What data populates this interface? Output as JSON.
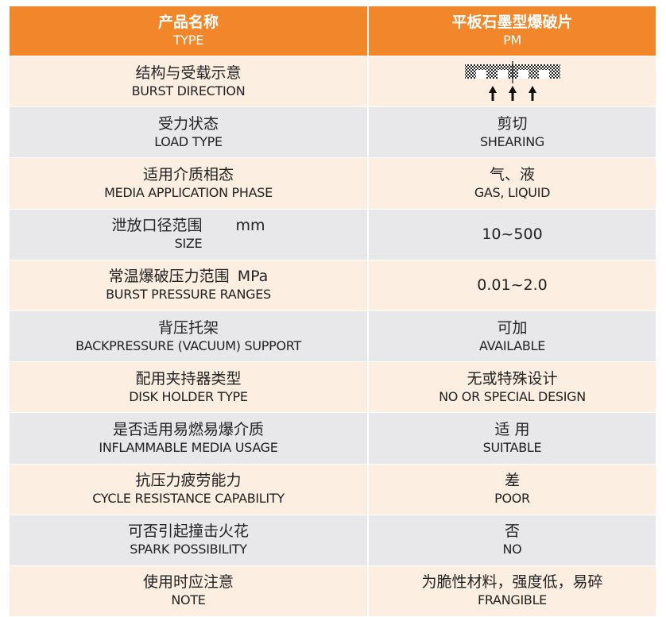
{
  "header": {
    "col1_zh": "产品名称",
    "col1_en": "TYPE",
    "col2_zh": "平板石墨型爆破片",
    "col2_en": "PM"
  },
  "colors": {
    "header": "#F2862A",
    "row_odd": "#FDEEE2",
    "row_even": "#E8E8EA"
  },
  "rows": [
    {
      "zh": "结构与受载示意",
      "en": "BURST DIRECTION",
      "val_icon": "burst-direction-diagram"
    },
    {
      "zh": "受力状态",
      "en": "LOAD TYPE",
      "val_zh": "剪切",
      "val_en": "SHEARING"
    },
    {
      "zh": "适用介质相态",
      "en": "MEDIA APPLICATION PHASE",
      "val_zh": "气、液",
      "val_en": "GAS, LIQUID"
    },
    {
      "zh": "泄放口径范围",
      "unit": "mm",
      "en": "SIZE",
      "val": "10~500"
    },
    {
      "zh": "常温爆破压力范围",
      "unit": "MPa",
      "en": "BURST PRESSURE RANGES",
      "val": "0.01~2.0"
    },
    {
      "zh": "背压托架",
      "en": "BACKPRESSURE (VACUUM) SUPPORT",
      "val_zh": "可加",
      "val_en": "AVAILABLE"
    },
    {
      "zh": "配用夹持器类型",
      "en": "DISK HOLDER TYPE",
      "val_zh": "无或特殊设计",
      "val_en": "NO OR SPECIAL DESIGN"
    },
    {
      "zh": "是否适用易燃易爆介质",
      "en": "INFLAMMABLE MEDIA USAGE",
      "val_zh": "适 用",
      "val_en": "SUITABLE"
    },
    {
      "zh": "抗压力疲劳能力",
      "en": "CYCLE RESISTANCE CAPABILITY",
      "val_zh": "差",
      "val_en": "POOR"
    },
    {
      "zh": "可否引起撞击火花",
      "en": "SPARK POSSIBILITY",
      "val_zh": "否",
      "val_en": "NO"
    },
    {
      "zh": "使用时应注意",
      "en": "NOTE",
      "val_zh": "为脆性材料，强度低，易碎",
      "val_en": "FRANGIBLE"
    }
  ]
}
